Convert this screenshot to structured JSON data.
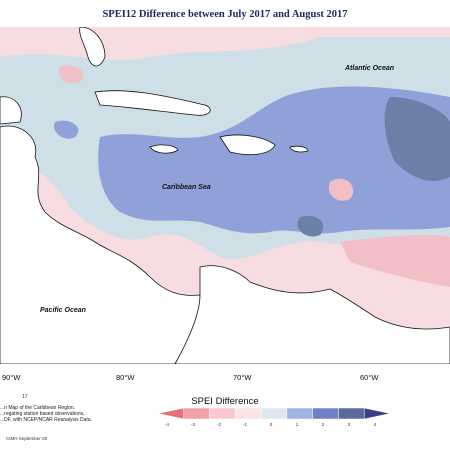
{
  "title": "SPEI12 Difference between July 2017 and August 2017",
  "map": {
    "labels": {
      "atlantic": "Atlantic Ocean",
      "caribbean": "Caribbean Sea",
      "pacific": "Pacific Ocean"
    },
    "longitudes": [
      "90°W",
      "80°W",
      "70°W",
      "60°W"
    ]
  },
  "legend": {
    "title": "SPEI Difference",
    "ticks": [
      "-4",
      "-3",
      "-2",
      "-1",
      "0",
      "1",
      "2",
      "3",
      "4"
    ],
    "colors": [
      "#e8707a",
      "#f0a0a8",
      "#f8c8cc",
      "#fbe4e6",
      "#dde9ef",
      "#9fb4e0",
      "#7080c8",
      "#5a6a9a",
      "#3a3f8a"
    ]
  },
  "notes": {
    "number": "17",
    "lines": [
      "...n Map of the Caribbean Region.",
      "...regating station based observations,",
      "...DF, with NCEP/NCAR Reanalysis Data."
    ],
    "credit": "CIMH September-20"
  }
}
